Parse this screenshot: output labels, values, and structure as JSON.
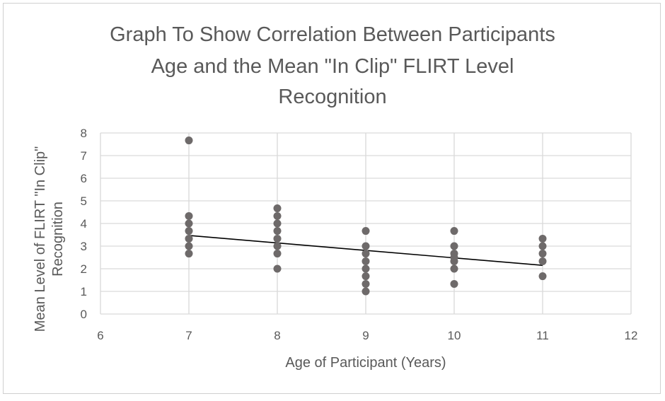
{
  "chart_data": {
    "type": "scatter",
    "title_lines": [
      "Graph To Show Correlation Between Participants",
      "Age and the Mean \"In Clip\" FLIRT Level",
      "Recognition"
    ],
    "xlabel": "Age of Participant (Years)",
    "ylabel_lines": [
      "Mean Level of FLIRT \"In Clip\"",
      "Recognition"
    ],
    "xlim": [
      6,
      12
    ],
    "ylim": [
      0,
      8
    ],
    "x_ticks": [
      6,
      7,
      8,
      9,
      10,
      11,
      12
    ],
    "y_ticks": [
      0,
      1,
      2,
      3,
      4,
      5,
      6,
      7,
      8
    ],
    "grid": true,
    "legend": "none",
    "marker_color": "#6e6a6a",
    "trendline_color": "#000000",
    "points": [
      {
        "x": 7,
        "y": 7.67
      },
      {
        "x": 7,
        "y": 4.33
      },
      {
        "x": 7,
        "y": 4.0
      },
      {
        "x": 7,
        "y": 3.67
      },
      {
        "x": 7,
        "y": 3.33
      },
      {
        "x": 7,
        "y": 3.0
      },
      {
        "x": 7,
        "y": 2.67
      },
      {
        "x": 8,
        "y": 4.67
      },
      {
        "x": 8,
        "y": 4.33
      },
      {
        "x": 8,
        "y": 4.0
      },
      {
        "x": 8,
        "y": 3.67
      },
      {
        "x": 8,
        "y": 3.33
      },
      {
        "x": 8,
        "y": 3.0
      },
      {
        "x": 8,
        "y": 2.67
      },
      {
        "x": 8,
        "y": 2.0
      },
      {
        "x": 9,
        "y": 3.67
      },
      {
        "x": 9,
        "y": 3.0
      },
      {
        "x": 9,
        "y": 2.67
      },
      {
        "x": 9,
        "y": 2.33
      },
      {
        "x": 9,
        "y": 2.0
      },
      {
        "x": 9,
        "y": 1.67
      },
      {
        "x": 9,
        "y": 1.33
      },
      {
        "x": 9,
        "y": 1.0
      },
      {
        "x": 10,
        "y": 3.67
      },
      {
        "x": 10,
        "y": 3.0
      },
      {
        "x": 10,
        "y": 2.67
      },
      {
        "x": 10,
        "y": 2.5
      },
      {
        "x": 10,
        "y": 2.33
      },
      {
        "x": 10,
        "y": 2.0
      },
      {
        "x": 10,
        "y": 1.33
      },
      {
        "x": 11,
        "y": 3.33
      },
      {
        "x": 11,
        "y": 3.0
      },
      {
        "x": 11,
        "y": 2.67
      },
      {
        "x": 11,
        "y": 2.33
      },
      {
        "x": 11,
        "y": 1.67
      }
    ],
    "trendline": {
      "x": [
        7,
        11
      ],
      "y": [
        3.47,
        2.15
      ]
    }
  }
}
